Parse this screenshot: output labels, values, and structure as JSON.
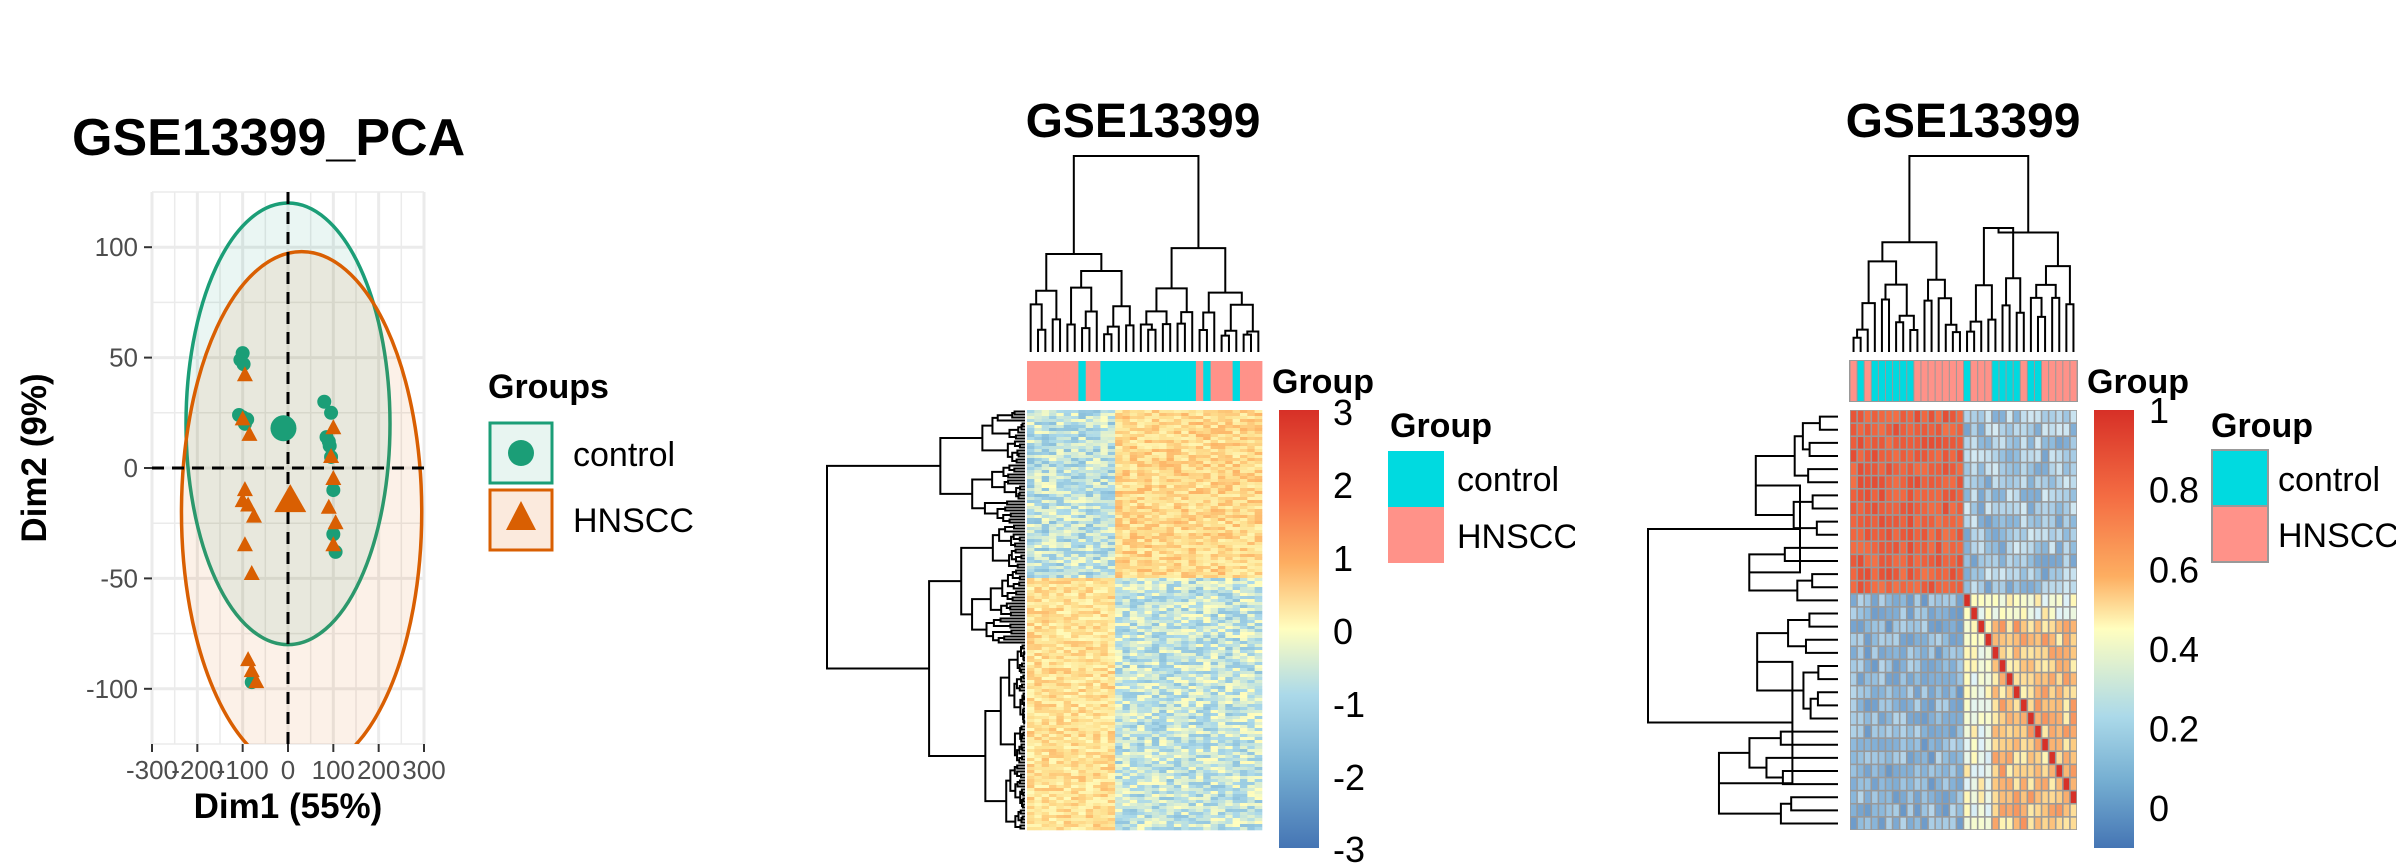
{
  "colors": {
    "control_pca": "#1b9e77",
    "hnscc_pca": "#d95f02",
    "control_anno": "#00dae0",
    "hnscc_anno": "#ff9289",
    "heat_low": "#4575b4",
    "heat_mid": "#fffebf",
    "heat_high": "#d73027"
  },
  "chart_data": [
    {
      "type": "scatter",
      "title": "GSE13399_PCA",
      "xlabel": "Dim1 (55%)",
      "ylabel": "Dim2 (9%)",
      "xlim": [
        -300,
        300
      ],
      "ylim": [
        -125,
        125
      ],
      "xticks": [
        -300,
        -200,
        -100,
        0,
        100,
        200,
        300
      ],
      "xtick_labels": [
        "-300",
        "-200",
        "-100",
        "0",
        "100",
        "200",
        "300"
      ],
      "yticks": [
        -100,
        -50,
        0,
        50,
        100
      ],
      "ytick_labels": [
        "-100",
        "-50",
        "0",
        "50",
        "100"
      ],
      "grid": true,
      "legend": {
        "title": "Groups",
        "entries": [
          "control",
          "HNSCC"
        ],
        "position": "right"
      },
      "series": [
        {
          "name": "control",
          "marker": "circle",
          "points": [
            [
              -100,
              52
            ],
            [
              -105,
              49
            ],
            [
              -98,
              47
            ],
            [
              -108,
              24
            ],
            [
              -100,
              23
            ],
            [
              -90,
              22
            ],
            [
              -95,
              20
            ],
            [
              80,
              30
            ],
            [
              95,
              25
            ],
            [
              85,
              14
            ],
            [
              90,
              12
            ],
            [
              92,
              10
            ],
            [
              95,
              5
            ],
            [
              100,
              -10
            ],
            [
              100,
              -30
            ],
            [
              105,
              -38
            ],
            [
              -80,
              -97
            ]
          ],
          "centroid": [
            -10,
            18
          ],
          "ellipse": {
            "center": [
              0,
              20
            ],
            "rx": 225,
            "ry": 100
          }
        },
        {
          "name": "HNSCC",
          "marker": "triangle",
          "points": [
            [
              -95,
              42
            ],
            [
              -100,
              22
            ],
            [
              -85,
              15
            ],
            [
              -95,
              -10
            ],
            [
              -100,
              -15
            ],
            [
              -88,
              -17
            ],
            [
              -75,
              -22
            ],
            [
              -95,
              -35
            ],
            [
              -80,
              -48
            ],
            [
              -88,
              -87
            ],
            [
              -80,
              -92
            ],
            [
              -70,
              -97
            ],
            [
              100,
              18
            ],
            [
              95,
              5
            ],
            [
              100,
              -5
            ],
            [
              90,
              -18
            ],
            [
              105,
              -25
            ],
            [
              100,
              -35
            ]
          ],
          "centroid": [
            5,
            -15
          ],
          "ellipse": {
            "center": [
              30,
              -20
            ],
            "rx": 265,
            "ry": 118
          }
        }
      ]
    },
    {
      "type": "heatmap",
      "title": "GSE13399",
      "annotation": {
        "title": "Group",
        "legend_entries": [
          "control",
          "HNSCC"
        ]
      },
      "colorbar": {
        "ticks": [
          3,
          2,
          1,
          0,
          -1,
          -2,
          -3
        ],
        "tick_labels": [
          "3",
          "2",
          "1",
          "0",
          "-1",
          "-2",
          "-3"
        ],
        "min": -3,
        "max": 3
      },
      "columns": 32,
      "column_groups": [
        "HNSCC",
        "HNSCC",
        "HNSCC",
        "HNSCC",
        "HNSCC",
        "HNSCC",
        "HNSCC",
        "control",
        "HNSCC",
        "HNSCC",
        "control",
        "control",
        "control",
        "control",
        "control",
        "control",
        "control",
        "control",
        "control",
        "control",
        "control",
        "control",
        "control",
        "HNSCC",
        "control",
        "HNSCC",
        "HNSCC",
        "HNSCC",
        "control",
        "HNSCC",
        "HNSCC",
        "HNSCC"
      ]
    },
    {
      "type": "heatmap",
      "title": "GSE13399",
      "annotation": {
        "title": "Group",
        "legend_entries": [
          "control",
          "HNSCC"
        ]
      },
      "colorbar": {
        "ticks": [
          1,
          0.8,
          0.6,
          0.4,
          0.2,
          0
        ],
        "tick_labels": [
          "1",
          "0.8",
          "0.6",
          "0.4",
          "0.2",
          "0"
        ],
        "min": -0.1,
        "max": 1
      },
      "columns": 32,
      "column_groups": [
        "HNSCC",
        "control",
        "HNSCC",
        "control",
        "control",
        "control",
        "control",
        "control",
        "control",
        "HNSCC",
        "HNSCC",
        "HNSCC",
        "HNSCC",
        "HNSCC",
        "HNSCC",
        "HNSCC",
        "control",
        "HNSCC",
        "HNSCC",
        "HNSCC",
        "control",
        "control",
        "control",
        "control",
        "HNSCC",
        "control",
        "control",
        "HNSCC",
        "HNSCC",
        "HNSCC",
        "HNSCC",
        "HNSCC"
      ]
    }
  ]
}
